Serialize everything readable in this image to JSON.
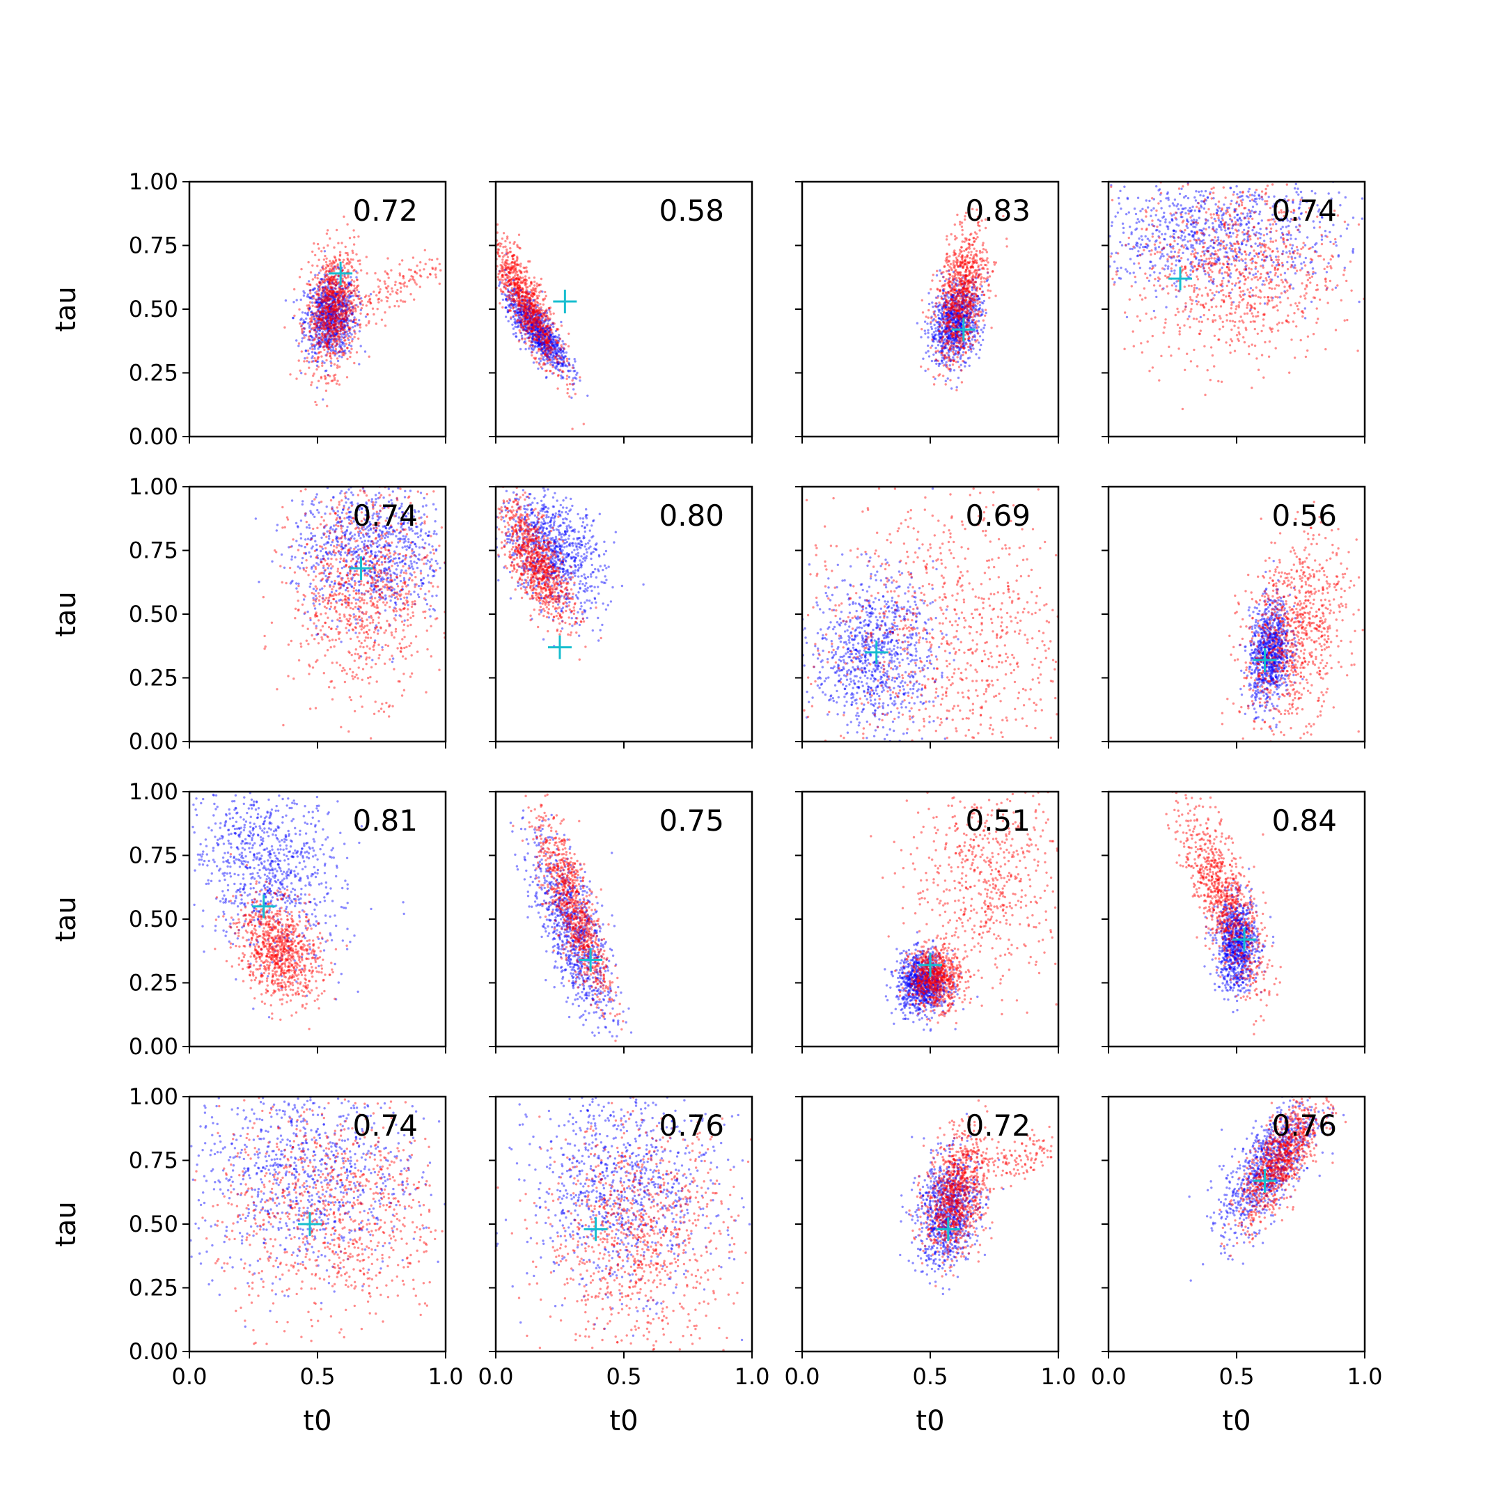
{
  "chart_data": {
    "type": "scatter",
    "layout": {
      "rows": 4,
      "cols": 4,
      "sharex": true,
      "sharey": true
    },
    "xlabel": "t0",
    "ylabel": "tau",
    "xlim": [
      0.0,
      1.0
    ],
    "ylim": [
      0.0,
      1.0
    ],
    "xticks": [
      "0.0",
      "0.5",
      "1.0"
    ],
    "yticks": [
      "0.00",
      "0.25",
      "0.50",
      "0.75",
      "1.00"
    ],
    "grid": false,
    "legend": "none",
    "colors": {
      "series_a": "#0000ff",
      "series_b": "#ff0000",
      "marker": "#17becf"
    },
    "panels": [
      {
        "score": "0.72",
        "marker": [
          0.59,
          0.64
        ],
        "a": {
          "x": 0.55,
          "y": 0.47,
          "sx": 0.05,
          "sy": 0.08,
          "r": 0.1,
          "n": 900
        },
        "b": {
          "x": 0.56,
          "y": 0.5,
          "sx": 0.05,
          "sy": 0.12,
          "r": 0.2,
          "n": 900
        },
        "b2": {
          "x": 0.82,
          "y": 0.6,
          "sx": 0.09,
          "sy": 0.07,
          "r": 0.7,
          "n": 120
        }
      },
      {
        "score": "0.58",
        "marker": [
          0.27,
          0.53
        ],
        "a": {
          "x": 0.16,
          "y": 0.42,
          "sx": 0.06,
          "sy": 0.08,
          "r": -0.8,
          "n": 900
        },
        "b": {
          "x": 0.12,
          "y": 0.52,
          "sx": 0.07,
          "sy": 0.13,
          "r": -0.85,
          "n": 900
        }
      },
      {
        "score": "0.83",
        "marker": [
          0.63,
          0.42
        ],
        "a": {
          "x": 0.6,
          "y": 0.45,
          "sx": 0.05,
          "sy": 0.08,
          "r": 0.3,
          "n": 900
        },
        "b": {
          "x": 0.62,
          "y": 0.55,
          "sx": 0.05,
          "sy": 0.13,
          "r": 0.4,
          "n": 900
        }
      },
      {
        "score": "0.74",
        "marker": [
          0.28,
          0.62
        ],
        "a": {
          "x": 0.4,
          "y": 0.8,
          "sx": 0.25,
          "sy": 0.12,
          "r": 0.0,
          "n": 900
        },
        "b": {
          "x": 0.5,
          "y": 0.65,
          "sx": 0.2,
          "sy": 0.18,
          "r": 0.0,
          "n": 900
        }
      },
      {
        "score": "0.74",
        "marker": [
          0.67,
          0.68
        ],
        "a": {
          "x": 0.7,
          "y": 0.75,
          "sx": 0.15,
          "sy": 0.14,
          "r": 0.0,
          "n": 900
        },
        "b": {
          "x": 0.68,
          "y": 0.6,
          "sx": 0.14,
          "sy": 0.2,
          "r": 0.0,
          "n": 900
        }
      },
      {
        "score": "0.80",
        "marker": [
          0.25,
          0.37
        ],
        "a": {
          "x": 0.22,
          "y": 0.75,
          "sx": 0.1,
          "sy": 0.12,
          "r": -0.4,
          "n": 900
        },
        "b": {
          "x": 0.16,
          "y": 0.7,
          "sx": 0.07,
          "sy": 0.12,
          "r": -0.7,
          "n": 900
        }
      },
      {
        "score": "0.69",
        "marker": [
          0.29,
          0.35
        ],
        "a": {
          "x": 0.28,
          "y": 0.35,
          "sx": 0.12,
          "sy": 0.15,
          "r": 0.0,
          "n": 900
        },
        "b": {
          "x": 0.55,
          "y": 0.4,
          "sx": 0.28,
          "sy": 0.28,
          "r": 0.0,
          "n": 900
        }
      },
      {
        "score": "0.56",
        "marker": [
          0.61,
          0.32
        ],
        "a": {
          "x": 0.63,
          "y": 0.35,
          "sx": 0.04,
          "sy": 0.1,
          "r": 0.2,
          "n": 900
        },
        "b": {
          "x": 0.72,
          "y": 0.42,
          "sx": 0.1,
          "sy": 0.18,
          "r": 0.3,
          "n": 900
        }
      },
      {
        "score": "0.81",
        "marker": [
          0.29,
          0.55
        ],
        "a": {
          "x": 0.3,
          "y": 0.7,
          "sx": 0.15,
          "sy": 0.18,
          "r": -0.3,
          "n": 900
        },
        "b": {
          "x": 0.35,
          "y": 0.38,
          "sx": 0.08,
          "sy": 0.1,
          "r": -0.3,
          "n": 900
        }
      },
      {
        "score": "0.75",
        "marker": [
          0.37,
          0.34
        ],
        "a": {
          "x": 0.3,
          "y": 0.45,
          "sx": 0.08,
          "sy": 0.18,
          "r": -0.7,
          "n": 900
        },
        "b": {
          "x": 0.3,
          "y": 0.55,
          "sx": 0.07,
          "sy": 0.18,
          "r": -0.8,
          "n": 900
        }
      },
      {
        "score": "0.51",
        "marker": [
          0.5,
          0.32
        ],
        "a": {
          "x": 0.47,
          "y": 0.25,
          "sx": 0.05,
          "sy": 0.06,
          "r": 0.0,
          "n": 900
        },
        "b": {
          "x": 0.52,
          "y": 0.27,
          "sx": 0.05,
          "sy": 0.06,
          "r": 0.0,
          "n": 700
        },
        "b2": {
          "x": 0.72,
          "y": 0.65,
          "sx": 0.15,
          "sy": 0.2,
          "r": 0.0,
          "n": 600
        }
      },
      {
        "score": "0.84",
        "marker": [
          0.53,
          0.42
        ],
        "a": {
          "x": 0.5,
          "y": 0.4,
          "sx": 0.04,
          "sy": 0.09,
          "r": 0.0,
          "n": 900
        },
        "b": {
          "x": 0.45,
          "y": 0.58,
          "sx": 0.08,
          "sy": 0.18,
          "r": -0.75,
          "n": 900
        }
      },
      {
        "score": "0.74",
        "marker": [
          0.47,
          0.5
        ],
        "a": {
          "x": 0.45,
          "y": 0.7,
          "sx": 0.22,
          "sy": 0.2,
          "r": 0.0,
          "n": 900
        },
        "b": {
          "x": 0.55,
          "y": 0.55,
          "sx": 0.22,
          "sy": 0.22,
          "r": 0.0,
          "n": 900
        }
      },
      {
        "score": "0.76",
        "marker": [
          0.39,
          0.48
        ],
        "a": {
          "x": 0.5,
          "y": 0.65,
          "sx": 0.18,
          "sy": 0.2,
          "r": 0.0,
          "n": 900
        },
        "b": {
          "x": 0.55,
          "y": 0.45,
          "sx": 0.18,
          "sy": 0.22,
          "r": 0.0,
          "n": 900
        }
      },
      {
        "score": "0.72",
        "marker": [
          0.57,
          0.48
        ],
        "a": {
          "x": 0.57,
          "y": 0.55,
          "sx": 0.06,
          "sy": 0.11,
          "r": 0.2,
          "n": 900
        },
        "b": {
          "x": 0.6,
          "y": 0.62,
          "sx": 0.06,
          "sy": 0.12,
          "r": 0.3,
          "n": 900
        },
        "b2": {
          "x": 0.85,
          "y": 0.75,
          "sx": 0.08,
          "sy": 0.05,
          "r": 0.5,
          "n": 120
        }
      },
      {
        "score": "0.76",
        "marker": [
          0.61,
          0.67
        ],
        "a": {
          "x": 0.62,
          "y": 0.72,
          "sx": 0.09,
          "sy": 0.13,
          "r": 0.7,
          "n": 900
        },
        "b": {
          "x": 0.67,
          "y": 0.75,
          "sx": 0.08,
          "sy": 0.12,
          "r": 0.75,
          "n": 900
        }
      }
    ]
  }
}
